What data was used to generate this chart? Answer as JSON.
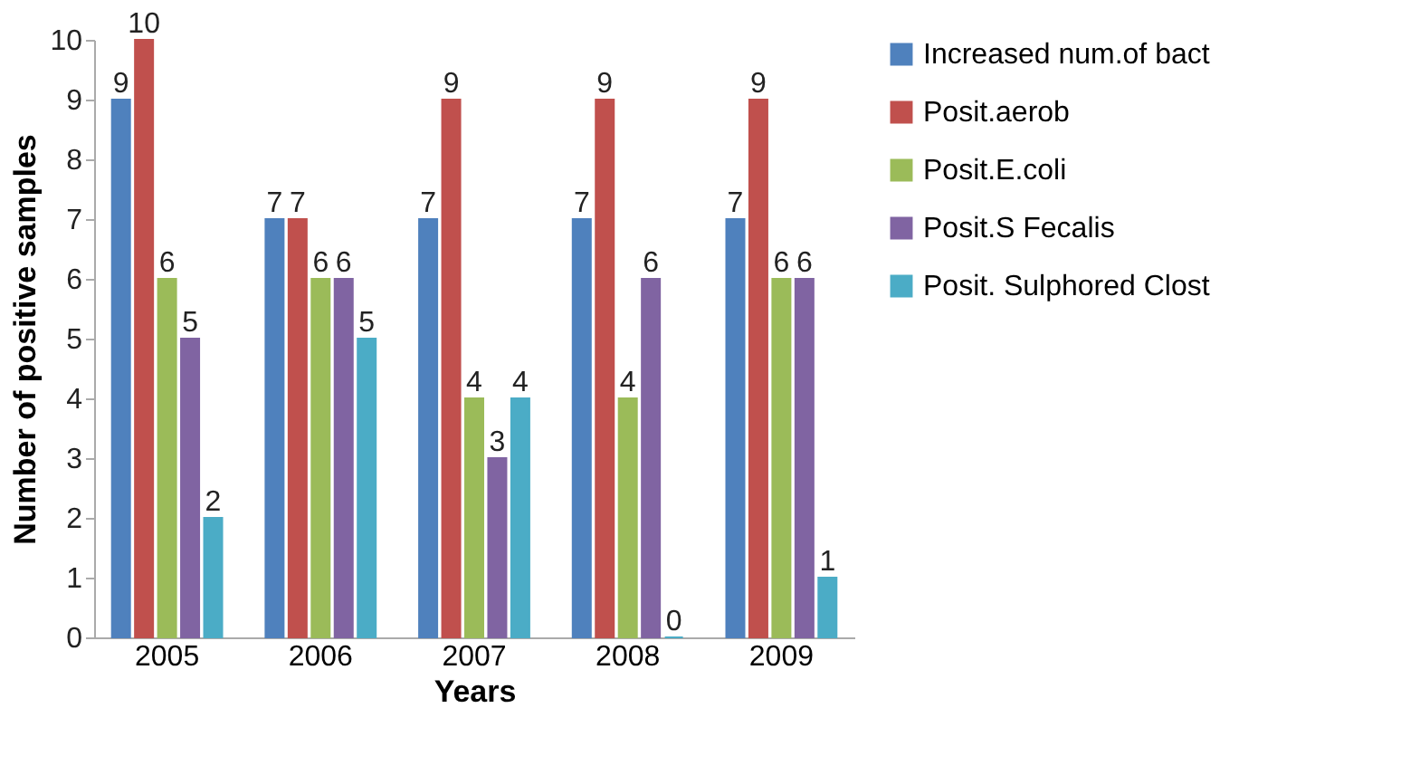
{
  "chart_data": {
    "type": "bar",
    "xlabel": "Years",
    "ylabel": "Number of positive samples",
    "categories": [
      "2005",
      "2006",
      "2007",
      "2008",
      "2009"
    ],
    "series": [
      {
        "name": "Increased num.of bact",
        "color": "#4f81bd",
        "values": [
          9,
          7,
          7,
          7,
          7
        ]
      },
      {
        "name": "Posit.aerob",
        "color": "#c0504d",
        "values": [
          10,
          7,
          9,
          9,
          9
        ]
      },
      {
        "name": "Posit.E.coli",
        "color": "#9bbb59",
        "values": [
          6,
          6,
          4,
          4,
          6
        ]
      },
      {
        "name": "Posit.S Fecalis",
        "color": "#8064a2",
        "values": [
          5,
          6,
          3,
          6,
          6
        ]
      },
      {
        "name": "Posit. Sulphored Clost",
        "color": "#4bacc6",
        "values": [
          2,
          5,
          4,
          0,
          1
        ]
      }
    ],
    "ylim": [
      0,
      10
    ],
    "yticks": [
      0,
      1,
      2,
      3,
      4,
      5,
      6,
      7,
      8,
      9,
      10
    ],
    "grid": false,
    "legend": "right",
    "data_labels": true
  }
}
